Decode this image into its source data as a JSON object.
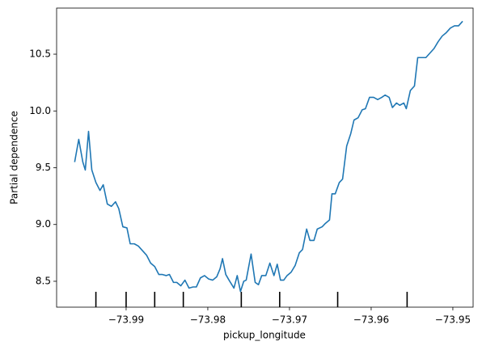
{
  "chart_data": {
    "type": "line",
    "xlabel": "pickup_longitude",
    "ylabel": "Partial dependence",
    "color": "#1f77b4",
    "grid": false,
    "xlim": [
      -73.99851,
      -73.94752
    ],
    "ylim": [
      8.272,
      10.906
    ],
    "xticks": [
      {
        "value": -73.99,
        "label": "−73.99"
      },
      {
        "value": -73.98,
        "label": "−73.98"
      },
      {
        "value": -73.97,
        "label": "−73.97"
      },
      {
        "value": -73.96,
        "label": "−73.96"
      },
      {
        "value": -73.95,
        "label": "−73.95"
      }
    ],
    "yticks": [
      8.5,
      {
        "value": 9.0,
        "label": "9.0"
      },
      9.5,
      {
        "value": 10.0,
        "label": "10.0"
      },
      10.5
    ],
    "deciles": [
      -73.9937,
      -73.99,
      -73.9865,
      -73.983,
      -73.9759,
      -73.9712,
      -73.9641,
      -73.9556
    ],
    "x": [
      -73.9963,
      -73.9958,
      -73.9953,
      -73.995,
      -73.9946,
      -73.9942,
      -73.9937,
      -73.9932,
      -73.9928,
      -73.9923,
      -73.9918,
      -73.9913,
      -73.9909,
      -73.9904,
      -73.9899,
      -73.9895,
      -73.989,
      -73.9885,
      -73.988,
      -73.9875,
      -73.987,
      -73.9865,
      -73.986,
      -73.9856,
      -73.9851,
      -73.9847,
      -73.9842,
      -73.9838,
      -73.9833,
      -73.9828,
      -73.9823,
      -73.9818,
      -73.9814,
      -73.9809,
      -73.9804,
      -73.9799,
      -73.9794,
      -73.9789,
      -73.9785,
      -73.9782,
      -73.9778,
      -73.9774,
      -73.9768,
      -73.9764,
      -73.976,
      -73.9756,
      -73.9753,
      -73.9747,
      -73.9742,
      -73.9738,
      -73.9734,
      -73.9729,
      -73.9724,
      -73.9719,
      -73.9715,
      -73.9711,
      -73.9707,
      -73.9703,
      -73.9698,
      -73.9693,
      -73.9688,
      -73.9684,
      -73.9679,
      -73.9675,
      -73.967,
      -73.9666,
      -73.966,
      -73.9656,
      -73.9651,
      -73.9648,
      -73.9644,
      -73.9639,
      -73.9635,
      -73.963,
      -73.9625,
      -73.9621,
      -73.9616,
      -73.9611,
      -73.9607,
      -73.9602,
      -73.9597,
      -73.9592,
      -73.9587,
      -73.9583,
      -73.9578,
      -73.9574,
      -73.9569,
      -73.9565,
      -73.956,
      -73.9557,
      -73.9552,
      -73.9547,
      -73.9543,
      -73.9538,
      -73.9533,
      -73.9528,
      -73.9523,
      -73.9518,
      -73.9513,
      -73.9508,
      -73.9503,
      -73.9498,
      -73.9493,
      -73.9488
    ],
    "values": [
      9.55,
      9.75,
      9.55,
      9.48,
      9.82,
      9.48,
      9.37,
      9.3,
      9.35,
      9.18,
      9.16,
      9.2,
      9.14,
      8.98,
      8.97,
      8.83,
      8.83,
      8.81,
      8.77,
      8.73,
      8.66,
      8.63,
      8.56,
      8.56,
      8.55,
      8.56,
      8.49,
      8.49,
      8.46,
      8.51,
      8.44,
      8.45,
      8.45,
      8.53,
      8.55,
      8.52,
      8.51,
      8.54,
      8.61,
      8.7,
      8.56,
      8.51,
      8.44,
      8.55,
      8.41,
      8.5,
      8.51,
      8.74,
      8.49,
      8.47,
      8.55,
      8.55,
      8.66,
      8.55,
      8.65,
      8.51,
      8.51,
      8.55,
      8.58,
      8.64,
      8.75,
      8.78,
      8.96,
      8.86,
      8.86,
      8.96,
      8.98,
      9.01,
      9.04,
      9.27,
      9.27,
      9.37,
      9.4,
      9.69,
      9.8,
      9.92,
      9.94,
      10.01,
      10.02,
      10.12,
      10.12,
      10.1,
      10.12,
      10.14,
      10.12,
      10.03,
      10.07,
      10.05,
      10.07,
      10.02,
      10.18,
      10.22,
      10.47,
      10.47,
      10.47,
      10.51,
      10.55,
      10.61,
      10.66,
      10.69,
      10.73,
      10.75,
      10.75,
      10.79
    ]
  }
}
